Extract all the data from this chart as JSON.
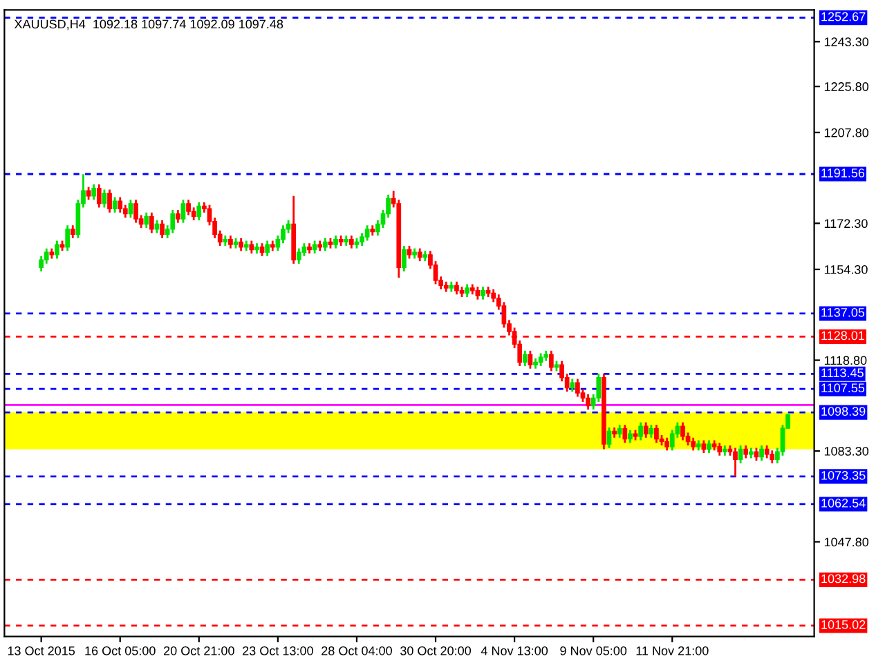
{
  "chart_data": {
    "type": "candlestick",
    "title": "XAUUSD,H4  1092.18 1097.74 1092.09 1097.48",
    "categories": [
      "13 Oct 2015",
      null,
      null,
      null,
      null,
      null,
      null,
      null,
      null,
      null,
      null,
      null,
      null,
      null,
      null,
      "16 Oct 05:00",
      null,
      null,
      null,
      null,
      null,
      null,
      null,
      null,
      null,
      null,
      null,
      null,
      null,
      null,
      "20 Oct 21:00",
      null,
      null,
      null,
      null,
      null,
      null,
      null,
      null,
      null,
      null,
      null,
      null,
      null,
      null,
      "23 Oct 13:00",
      null,
      null,
      null,
      null,
      null,
      null,
      null,
      null,
      null,
      null,
      null,
      null,
      null,
      null,
      "28 Oct 04:00",
      null,
      null,
      null,
      null,
      null,
      null,
      null,
      null,
      null,
      null,
      null,
      null,
      null,
      null,
      "30 Oct 20:00",
      null,
      null,
      null,
      null,
      null,
      null,
      null,
      null,
      null,
      null,
      null,
      null,
      null,
      null,
      "4 Nov 13:00",
      null,
      null,
      null,
      null,
      null,
      null,
      null,
      null,
      null,
      null,
      null,
      null,
      null,
      null,
      "9 Nov 05:00",
      null,
      null,
      null,
      null,
      null,
      null,
      null,
      null,
      null,
      null,
      null,
      null,
      null,
      null,
      "11 Nov 21:00",
      null,
      null,
      null,
      null,
      null,
      null,
      null,
      null,
      null,
      null,
      null,
      null,
      null,
      null,
      null,
      null,
      null,
      null,
      null,
      null,
      null,
      null
    ],
    "ohlc": [
      [
        1155,
        1159.5,
        1153.5,
        1158
      ],
      [
        1158,
        1162.5,
        1156.5,
        1161
      ],
      [
        1161,
        1162.5,
        1158.5,
        1160
      ],
      [
        1160,
        1165.5,
        1158.5,
        1164
      ],
      [
        1164,
        1165.5,
        1161.5,
        1163
      ],
      [
        1163,
        1171.5,
        1161.5,
        1170
      ],
      [
        1170,
        1171.5,
        1166.5,
        1168
      ],
      [
        1168,
        1181.5,
        1166.5,
        1180
      ],
      [
        1180,
        1191.5,
        1178.5,
        1185
      ],
      [
        1185,
        1186.5,
        1181.5,
        1183
      ],
      [
        1183,
        1187.5,
        1181.5,
        1186
      ],
      [
        1186,
        1187.5,
        1178.5,
        1180
      ],
      [
        1180,
        1185.5,
        1178.5,
        1184
      ],
      [
        1184,
        1185.5,
        1176.5,
        1178
      ],
      [
        1178,
        1182.5,
        1176.5,
        1181
      ],
      [
        1181,
        1182.5,
        1176.5,
        1178
      ],
      [
        1178,
        1179.5,
        1174.5,
        1176
      ],
      [
        1176,
        1181.5,
        1174.5,
        1180
      ],
      [
        1180,
        1181.5,
        1172.5,
        1174
      ],
      [
        1174,
        1175.5,
        1170.5,
        1172
      ],
      [
        1172,
        1176.5,
        1170.5,
        1175
      ],
      [
        1175,
        1176.5,
        1168.5,
        1170
      ],
      [
        1170,
        1173.5,
        1168.5,
        1172
      ],
      [
        1172,
        1173.5,
        1166.5,
        1168
      ],
      [
        1168,
        1171.5,
        1166.5,
        1170
      ],
      [
        1170,
        1177.5,
        1168.5,
        1176
      ],
      [
        1176,
        1177.5,
        1172.5,
        1174
      ],
      [
        1174,
        1181.5,
        1172.5,
        1180
      ],
      [
        1180,
        1181.5,
        1175.5,
        1177
      ],
      [
        1177,
        1178.5,
        1173.5,
        1175
      ],
      [
        1175,
        1180.5,
        1173.5,
        1179
      ],
      [
        1179,
        1180.5,
        1176.5,
        1178
      ],
      [
        1178,
        1179.5,
        1171.5,
        1173
      ],
      [
        1173,
        1174.5,
        1166.5,
        1168
      ],
      [
        1168,
        1169.5,
        1163.5,
        1165
      ],
      [
        1165,
        1167.5,
        1163.5,
        1166
      ],
      [
        1166,
        1167.5,
        1162.5,
        1164
      ],
      [
        1164,
        1166.5,
        1162.5,
        1165
      ],
      [
        1165,
        1166.5,
        1161.5,
        1163
      ],
      [
        1163,
        1165.5,
        1161.5,
        1164
      ],
      [
        1164,
        1165.5,
        1160.5,
        1162
      ],
      [
        1162,
        1164.5,
        1160.5,
        1163
      ],
      [
        1163,
        1164.5,
        1159.5,
        1161
      ],
      [
        1161,
        1165.5,
        1159.5,
        1164
      ],
      [
        1164,
        1165.5,
        1161.5,
        1163
      ],
      [
        1163,
        1167.5,
        1161.5,
        1166
      ],
      [
        1166,
        1171.5,
        1164.5,
        1170
      ],
      [
        1170,
        1173.5,
        1168.5,
        1172
      ],
      [
        1172,
        1183,
        1156.5,
        1158
      ],
      [
        1158,
        1162.5,
        1156.5,
        1161
      ],
      [
        1161,
        1164.5,
        1159.5,
        1163
      ],
      [
        1163,
        1164.5,
        1160.5,
        1162
      ],
      [
        1162,
        1165.5,
        1160.5,
        1164
      ],
      [
        1164,
        1165.5,
        1161.5,
        1163
      ],
      [
        1163,
        1166.5,
        1161.5,
        1165
      ],
      [
        1165,
        1166.5,
        1162.5,
        1164
      ],
      [
        1164,
        1167.5,
        1162.5,
        1166
      ],
      [
        1166,
        1167.5,
        1163.5,
        1165
      ],
      [
        1165,
        1167.5,
        1163.5,
        1166
      ],
      [
        1166,
        1167.5,
        1162.5,
        1164
      ],
      [
        1164,
        1166.5,
        1162.5,
        1165
      ],
      [
        1165,
        1168.5,
        1163.5,
        1167
      ],
      [
        1167,
        1171.5,
        1165.5,
        1170
      ],
      [
        1170,
        1171.5,
        1167.5,
        1169
      ],
      [
        1169,
        1173.5,
        1167.5,
        1172
      ],
      [
        1172,
        1177.5,
        1170.5,
        1176
      ],
      [
        1176,
        1183.5,
        1174.5,
        1182
      ],
      [
        1182,
        1185,
        1178.5,
        1180
      ],
      [
        1180,
        1181.5,
        1151,
        1155
      ],
      [
        1155,
        1163.5,
        1153.5,
        1162
      ],
      [
        1162,
        1163.5,
        1158.5,
        1160
      ],
      [
        1160,
        1162.5,
        1158.5,
        1161
      ],
      [
        1161,
        1162.5,
        1157.5,
        1159
      ],
      [
        1159,
        1161.5,
        1157.5,
        1160
      ],
      [
        1160,
        1161.5,
        1154.5,
        1156
      ],
      [
        1156,
        1157.5,
        1148.5,
        1150
      ],
      [
        1150,
        1151.5,
        1146.5,
        1148
      ],
      [
        1148,
        1149.5,
        1145.5,
        1147
      ],
      [
        1147,
        1149.5,
        1145.5,
        1148
      ],
      [
        1148,
        1149.5,
        1144.5,
        1146
      ],
      [
        1146,
        1147.5,
        1143.5,
        1145
      ],
      [
        1145,
        1148.5,
        1143.5,
        1147
      ],
      [
        1147,
        1148.5,
        1144.5,
        1146
      ],
      [
        1146,
        1147.5,
        1142.5,
        1144
      ],
      [
        1144,
        1147.5,
        1142.5,
        1146
      ],
      [
        1146,
        1147.5,
        1143.5,
        1145
      ],
      [
        1145,
        1146.5,
        1141.5,
        1143
      ],
      [
        1143,
        1144.5,
        1138.5,
        1140
      ],
      [
        1140,
        1141.5,
        1131.5,
        1133
      ],
      [
        1133,
        1134.5,
        1128.5,
        1130
      ],
      [
        1130,
        1131.5,
        1123.5,
        1125
      ],
      [
        1125,
        1126.5,
        1116.5,
        1118
      ],
      [
        1118,
        1122.5,
        1116.5,
        1121
      ],
      [
        1121,
        1122.5,
        1115.5,
        1117
      ],
      [
        1117,
        1119.5,
        1115.5,
        1118
      ],
      [
        1118,
        1121.5,
        1116.5,
        1120
      ],
      [
        1120,
        1122.5,
        1118.5,
        1121
      ],
      [
        1121,
        1122.5,
        1114.5,
        1116
      ],
      [
        1116,
        1118.5,
        1114.5,
        1117
      ],
      [
        1117,
        1118.5,
        1110.5,
        1112
      ],
      [
        1112,
        1113.5,
        1106.5,
        1108
      ],
      [
        1108,
        1111.5,
        1106.5,
        1110
      ],
      [
        1110,
        1111.5,
        1104.5,
        1106
      ],
      [
        1106,
        1107.5,
        1102.5,
        1104
      ],
      [
        1104,
        1105.5,
        1099.5,
        1101
      ],
      [
        1101,
        1105.5,
        1099.5,
        1104
      ],
      [
        1104,
        1113.5,
        1102.5,
        1112
      ],
      [
        1112,
        1113.5,
        1084,
        1086
      ],
      [
        1086,
        1092.5,
        1084.5,
        1091
      ],
      [
        1091,
        1092.5,
        1088.5,
        1090
      ],
      [
        1090,
        1093.5,
        1088.5,
        1092
      ],
      [
        1092,
        1093.5,
        1086.5,
        1088
      ],
      [
        1088,
        1091.5,
        1086.5,
        1090
      ],
      [
        1090,
        1091.5,
        1087.5,
        1089
      ],
      [
        1089,
        1094.5,
        1087.5,
        1093
      ],
      [
        1093,
        1094.5,
        1088.5,
        1090
      ],
      [
        1090,
        1093.5,
        1088.5,
        1092
      ],
      [
        1092,
        1093.5,
        1086.5,
        1088
      ],
      [
        1088,
        1089.5,
        1085.5,
        1087
      ],
      [
        1087,
        1088.5,
        1083.5,
        1085
      ],
      [
        1085,
        1091.5,
        1083.5,
        1090
      ],
      [
        1090,
        1094.5,
        1088.5,
        1093
      ],
      [
        1093,
        1094.5,
        1087.5,
        1089
      ],
      [
        1089,
        1090.5,
        1085.5,
        1087
      ],
      [
        1087,
        1088.5,
        1083.5,
        1085
      ],
      [
        1085,
        1087.5,
        1083.5,
        1086
      ],
      [
        1086,
        1087.5,
        1082.5,
        1084
      ],
      [
        1084,
        1087.5,
        1082.5,
        1086
      ],
      [
        1086,
        1087.5,
        1083.5,
        1085
      ],
      [
        1085,
        1086.5,
        1081.5,
        1083
      ],
      [
        1083,
        1085.5,
        1081.5,
        1084
      ],
      [
        1084,
        1085.5,
        1081.5,
        1083
      ],
      [
        1083,
        1084.5,
        1073.4,
        1080
      ],
      [
        1080,
        1085.5,
        1078.5,
        1084
      ],
      [
        1084,
        1085.5,
        1080.5,
        1082
      ],
      [
        1082,
        1084.5,
        1080.5,
        1083
      ],
      [
        1083,
        1084.5,
        1079.5,
        1081
      ],
      [
        1081,
        1085.5,
        1079.5,
        1084
      ],
      [
        1084,
        1085.5,
        1080.5,
        1082
      ],
      [
        1082,
        1083.5,
        1078.5,
        1080
      ],
      [
        1080,
        1084.5,
        1078.5,
        1083
      ],
      [
        1083,
        1093.5,
        1081.5,
        1092.2
      ],
      [
        1092.18,
        1097.74,
        1092.09,
        1097.48
      ]
    ],
    "ylim": [
      1010.8,
      1255.7
    ],
    "yticks": [
      {
        "value": 1243.3,
        "label": "1243.30"
      },
      {
        "value": 1225.8,
        "label": "1225.80"
      },
      {
        "value": 1207.8,
        "label": "1207.80"
      },
      {
        "value": 1172.3,
        "label": "1172.30"
      },
      {
        "value": 1154.3,
        "label": "1154.30"
      },
      {
        "value": 1118.8,
        "label": "1118.80"
      },
      {
        "value": 1083.3,
        "label": "1083.30"
      },
      {
        "value": 1047.8,
        "label": "1047.80"
      }
    ],
    "ref_lines": [
      {
        "axis": "y",
        "value": 1252.67,
        "label": "1252.67",
        "color": "#0000ff",
        "line_style": "dashed"
      },
      {
        "axis": "y",
        "value": 1191.56,
        "label": "1191.56",
        "color": "#0000ff",
        "line_style": "dashed"
      },
      {
        "axis": "y",
        "value": 1137.05,
        "label": "1137.05",
        "color": "#0000ff",
        "line_style": "dashed"
      },
      {
        "axis": "y",
        "value": 1128.01,
        "label": "1128.01",
        "color": "#ff0000",
        "line_style": "dashed"
      },
      {
        "axis": "y",
        "value": 1113.45,
        "label": "1113.45",
        "color": "#0000ff",
        "line_style": "dashed"
      },
      {
        "axis": "y",
        "value": 1107.55,
        "label": "1107.55",
        "color": "#0000ff",
        "line_style": "dashed"
      },
      {
        "axis": "y",
        "value": 1101.3,
        "color": "#ff00ff",
        "line_style": "solid"
      },
      {
        "axis": "y",
        "value": 1098.39,
        "label": "1098.39",
        "color": "#0000ff",
        "line_style": "dashed"
      },
      {
        "axis": "y",
        "value": 1073.35,
        "label": "1073.35",
        "color": "#0000ff",
        "line_style": "dashed"
      },
      {
        "axis": "y",
        "value": 1062.54,
        "label": "1062.54",
        "color": "#0000ff",
        "line_style": "dashed"
      },
      {
        "axis": "y",
        "value": 1032.98,
        "label": "1032.98",
        "color": "#ff0000",
        "line_style": "dashed"
      },
      {
        "axis": "y",
        "value": 1015.02,
        "label": "1015.02",
        "color": "#ff0000",
        "line_style": "dashed"
      }
    ],
    "bands": [
      {
        "axis": "y",
        "from": 1084,
        "to": 1098.39,
        "color": "#ffff00"
      }
    ],
    "grid": false,
    "legend": false
  }
}
